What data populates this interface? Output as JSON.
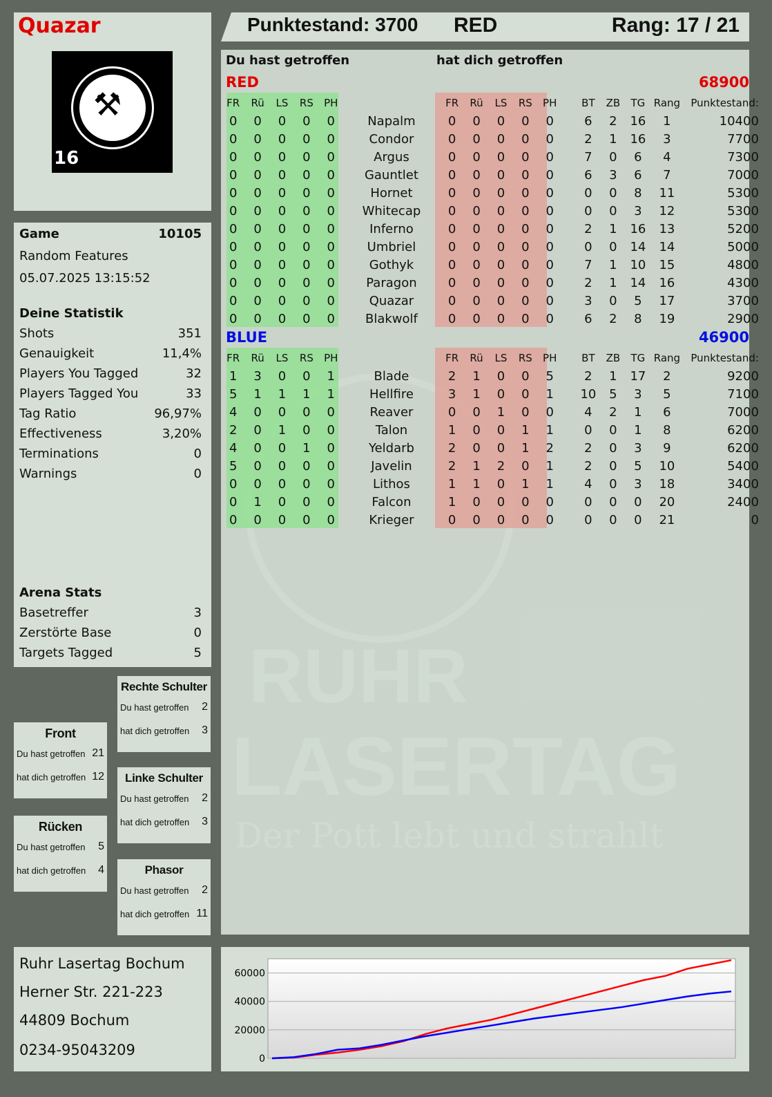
{
  "player": {
    "name": "Quazar",
    "logo_text": "RUHR LASERTAG",
    "logo_number": "16"
  },
  "header": {
    "score_label": "Punktestand: 3700",
    "team": "RED",
    "rank": "Rang: 17 / 21"
  },
  "game": {
    "label": "Game",
    "number": "10105",
    "mode": "Random Features",
    "datetime": "05.07.2025 13:15:52"
  },
  "stats": {
    "title": "Deine Statistik",
    "items": [
      {
        "label": "Shots",
        "value": "351"
      },
      {
        "label": "Genauigkeit",
        "value": "11,4%"
      },
      {
        "label": "Players You Tagged",
        "value": "32"
      },
      {
        "label": "Players Tagged You",
        "value": "33"
      },
      {
        "label": "Tag Ratio",
        "value": "96,97%"
      },
      {
        "label": "Effectiveness",
        "value": "3,20%"
      },
      {
        "label": "Terminations",
        "value": "0"
      },
      {
        "label": "Warnings",
        "value": "0"
      }
    ]
  },
  "arena": {
    "title": "Arena Stats",
    "items": [
      {
        "label": "Basetreffer",
        "value": "3"
      },
      {
        "label": "Zerstörte Base",
        "value": "0"
      },
      {
        "label": "Targets Tagged",
        "value": "5"
      }
    ]
  },
  "zones": [
    {
      "title": "Front",
      "hit": "21",
      "got": "12"
    },
    {
      "title": "Rücken",
      "hit": "5",
      "got": "4"
    },
    {
      "title": "Rechte Schulter",
      "hit": "2",
      "got": "3"
    },
    {
      "title": "Linke Schulter",
      "hit": "2",
      "got": "3"
    },
    {
      "title": "Phasor",
      "hit": "2",
      "got": "11"
    }
  ],
  "zone_labels": {
    "hit": "Du hast getroffen",
    "got": "hat dich getroffen"
  },
  "table": {
    "you_hit": "Du hast getroffen",
    "hit_you": "hat dich getroffen",
    "cols": [
      "FR",
      "Rü",
      "LS",
      "RS",
      "PH"
    ],
    "right_cols": [
      "BT",
      "ZB",
      "TG",
      "Rang",
      "Punktestand:"
    ],
    "teams": [
      {
        "name": "RED",
        "total": "68900",
        "color": "#e00000",
        "players": [
          [
            "0",
            "0",
            "0",
            "0",
            "0",
            "Napalm",
            "0",
            "0",
            "0",
            "0",
            "0",
            "6",
            "2",
            "16",
            "1",
            "10400"
          ],
          [
            "0",
            "0",
            "0",
            "0",
            "0",
            "Condor",
            "0",
            "0",
            "0",
            "0",
            "0",
            "2",
            "1",
            "16",
            "3",
            "7700"
          ],
          [
            "0",
            "0",
            "0",
            "0",
            "0",
            "Argus",
            "0",
            "0",
            "0",
            "0",
            "0",
            "7",
            "0",
            "6",
            "4",
            "7300"
          ],
          [
            "0",
            "0",
            "0",
            "0",
            "0",
            "Gauntlet",
            "0",
            "0",
            "0",
            "0",
            "0",
            "6",
            "3",
            "6",
            "7",
            "7000"
          ],
          [
            "0",
            "0",
            "0",
            "0",
            "0",
            "Hornet",
            "0",
            "0",
            "0",
            "0",
            "0",
            "0",
            "0",
            "8",
            "11",
            "5300"
          ],
          [
            "0",
            "0",
            "0",
            "0",
            "0",
            "Whitecap",
            "0",
            "0",
            "0",
            "0",
            "0",
            "0",
            "0",
            "3",
            "12",
            "5300"
          ],
          [
            "0",
            "0",
            "0",
            "0",
            "0",
            "Inferno",
            "0",
            "0",
            "0",
            "0",
            "0",
            "2",
            "1",
            "16",
            "13",
            "5200"
          ],
          [
            "0",
            "0",
            "0",
            "0",
            "0",
            "Umbriel",
            "0",
            "0",
            "0",
            "0",
            "0",
            "0",
            "0",
            "14",
            "14",
            "5000"
          ],
          [
            "0",
            "0",
            "0",
            "0",
            "0",
            "Gothyk",
            "0",
            "0",
            "0",
            "0",
            "0",
            "7",
            "1",
            "10",
            "15",
            "4800"
          ],
          [
            "0",
            "0",
            "0",
            "0",
            "0",
            "Paragon",
            "0",
            "0",
            "0",
            "0",
            "0",
            "2",
            "1",
            "14",
            "16",
            "4300"
          ],
          [
            "0",
            "0",
            "0",
            "0",
            "0",
            "Quazar",
            "0",
            "0",
            "0",
            "0",
            "0",
            "3",
            "0",
            "5",
            "17",
            "3700"
          ],
          [
            "0",
            "0",
            "0",
            "0",
            "0",
            "Blakwolf",
            "0",
            "0",
            "0",
            "0",
            "0",
            "6",
            "2",
            "8",
            "19",
            "2900"
          ]
        ]
      },
      {
        "name": "BLUE",
        "total": "46900",
        "color": "#0010e0",
        "players": [
          [
            "1",
            "3",
            "0",
            "0",
            "1",
            "Blade",
            "2",
            "1",
            "0",
            "0",
            "5",
            "2",
            "1",
            "17",
            "2",
            "9200"
          ],
          [
            "5",
            "1",
            "1",
            "1",
            "1",
            "Hellfire",
            "3",
            "1",
            "0",
            "0",
            "1",
            "10",
            "5",
            "3",
            "5",
            "7100"
          ],
          [
            "4",
            "0",
            "0",
            "0",
            "0",
            "Reaver",
            "0",
            "0",
            "1",
            "0",
            "0",
            "4",
            "2",
            "1",
            "6",
            "7000"
          ],
          [
            "2",
            "0",
            "1",
            "0",
            "0",
            "Talon",
            "1",
            "0",
            "0",
            "1",
            "1",
            "0",
            "0",
            "1",
            "8",
            "6200"
          ],
          [
            "4",
            "0",
            "0",
            "1",
            "0",
            "Yeldarb",
            "2",
            "0",
            "0",
            "1",
            "2",
            "2",
            "0",
            "3",
            "9",
            "6200"
          ],
          [
            "5",
            "0",
            "0",
            "0",
            "0",
            "Javelin",
            "2",
            "1",
            "2",
            "0",
            "1",
            "2",
            "0",
            "5",
            "10",
            "5400"
          ],
          [
            "0",
            "0",
            "0",
            "0",
            "0",
            "Lithos",
            "1",
            "1",
            "0",
            "1",
            "1",
            "4",
            "0",
            "3",
            "18",
            "3400"
          ],
          [
            "0",
            "1",
            "0",
            "0",
            "0",
            "Falcon",
            "1",
            "0",
            "0",
            "0",
            "0",
            "0",
            "0",
            "0",
            "20",
            "2400"
          ],
          [
            "0",
            "0",
            "0",
            "0",
            "0",
            "Krieger",
            "0",
            "0",
            "0",
            "0",
            "0",
            "0",
            "0",
            "0",
            "21",
            "0"
          ]
        ]
      }
    ]
  },
  "watermark": {
    "line1": "RUHR",
    "line2": "LASERTAG",
    "slogan": "Der Pott lebt und strahlt"
  },
  "address": [
    "Ruhr Lasertag Bochum",
    "Herner Str. 221-223",
    "44809 Bochum",
    "0234-95043209"
  ],
  "chart_data": {
    "type": "line",
    "ylim": [
      0,
      70000
    ],
    "yticks": [
      "60000",
      "40000",
      "20000",
      "0"
    ],
    "grid": true,
    "series": [
      {
        "color": "#ff0000",
        "values": [
          0,
          500,
          2500,
          4000,
          6000,
          8500,
          12000,
          17000,
          21000,
          24000,
          27000,
          31000,
          35000,
          39000,
          43000,
          47000,
          51000,
          55000,
          58000,
          63000,
          66000,
          69000
        ]
      },
      {
        "color": "#0000ff",
        "values": [
          0,
          800,
          3000,
          6000,
          7000,
          9500,
          12500,
          15500,
          18000,
          20500,
          23000,
          25500,
          28000,
          30000,
          32000,
          34000,
          36000,
          38500,
          41000,
          43500,
          45500,
          47000
        ]
      }
    ]
  }
}
